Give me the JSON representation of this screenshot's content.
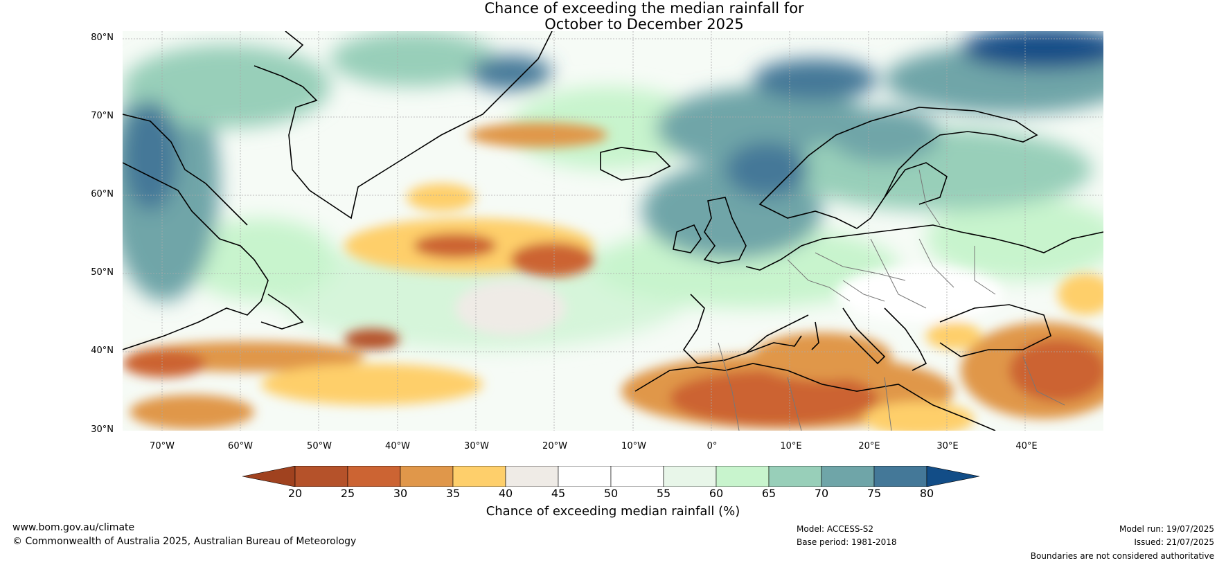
{
  "title": {
    "line1": "Chance of exceeding the median rainfall for",
    "line2": "October to December 2025"
  },
  "map": {
    "lat_labels": [
      "80°N",
      "70°N",
      "60°N",
      "50°N",
      "40°N",
      "30°N"
    ],
    "lon_labels": [
      "70°W",
      "60°W",
      "50°W",
      "40°W",
      "30°W",
      "20°W",
      "10°W",
      "0°",
      "10°E",
      "20°E",
      "30°E",
      "40°E"
    ],
    "lat_range": [
      30,
      80
    ],
    "lon_range": [
      -75,
      50
    ]
  },
  "colorbar": {
    "ticks": [
      "20",
      "25",
      "30",
      "35",
      "40",
      "45",
      "50",
      "55",
      "60",
      "65",
      "70",
      "75",
      "80"
    ],
    "colors": [
      "#a0421f",
      "#b5522a",
      "#cc6433",
      "#e0974a",
      "#fecf6b",
      "#efebe6",
      "#ffffff",
      "#ffffff",
      "#e8f6e9",
      "#c8f4cd",
      "#98cfb9",
      "#6fa5a8",
      "#447898",
      "#124d87"
    ],
    "label": "Chance of exceeding median rainfall (%)"
  },
  "footer": {
    "website": "www.bom.gov.au/climate",
    "copyright": "© Commonwealth of Australia 2025, Australian Bureau of Meteorology",
    "model": "Model: ACCESS-S2",
    "base_period": "Base period: 1981-2018",
    "model_run": "Model run: 19/07/2025",
    "issued": "Issued: 21/07/2025",
    "disclaimer": "Boundaries are not considered authoritative"
  }
}
